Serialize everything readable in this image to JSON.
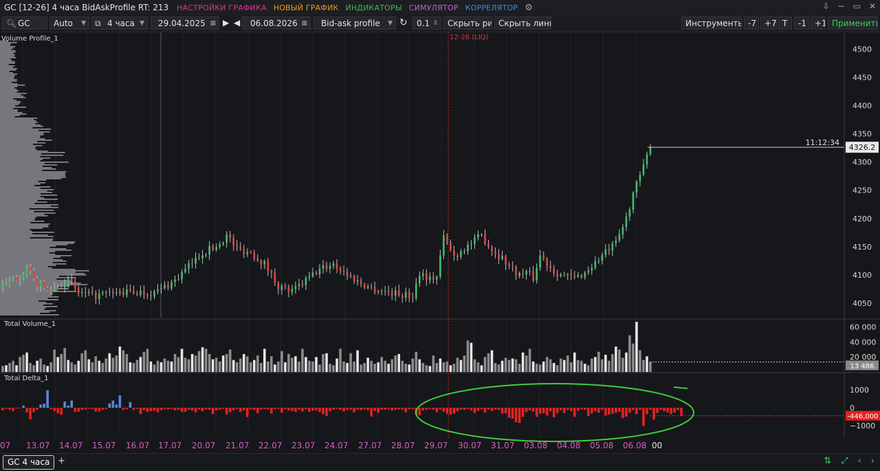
{
  "window": {
    "title": "GC [12-26] 4 часа BidAskProfile RT: 213",
    "menus": [
      {
        "label": "НАСТРОЙКИ ГРАФИКА",
        "color": "#e0338a"
      },
      {
        "label": "НОВЫЙ ГРАФИК",
        "color": "#e89b21"
      },
      {
        "label": "ИНДИКАТОРЫ",
        "color": "#3fb950"
      },
      {
        "label": "СИМУЛЯТОР",
        "color": "#c061cb"
      },
      {
        "label": "КОРРЕЛЯТОР",
        "color": "#3a8dde"
      }
    ],
    "controls": [
      "⇩",
      "−",
      "▭",
      "✕"
    ]
  },
  "toolbar": {
    "symbol": "GC",
    "scale": "Auto",
    "timeframe": "4 часа",
    "date_from": "29.04.2025",
    "date_to": "06.08.2026",
    "chart_type": "Bid-ask profile",
    "step": "0.1",
    "hide_drawings": "Скрыть рис.",
    "hide_lines": "Скрыть линии",
    "instruments": "Инструменты",
    "btn_m7": "-7",
    "btn_p7": "+7",
    "btn_t": "T",
    "btn_m1": "-1",
    "btn_p1": "+1",
    "apply": "Применить"
  },
  "panels": {
    "price_label": "Volume Profile_1",
    "volume_label": "Total Volume_1",
    "delta_label": "Total Delta_1",
    "contract_marker": "12-26 (LIQ)",
    "current_time": "11:12:34",
    "current_price": "4326.2",
    "current_volume": "13 486",
    "current_delta": "-446,000",
    "price_ticks": [
      "4500",
      "4450",
      "4400",
      "4350",
      "4300",
      "4250",
      "4200",
      "4150",
      "4100",
      "4050"
    ],
    "volume_ticks": [
      "60 000",
      "40 000",
      "20 000"
    ],
    "delta_ticks": [
      "1000",
      "0",
      "−1000"
    ]
  },
  "chart_data": {
    "type": "candlestick",
    "price_axis": {
      "ticks": [
        4500,
        4450,
        4400,
        4350,
        4300,
        4250,
        4200,
        4150,
        4100,
        4050
      ],
      "range": [
        4028,
        4520
      ]
    },
    "volume_axis": {
      "ticks": [
        60000,
        40000,
        20000
      ],
      "range": [
        0,
        68000
      ]
    },
    "delta_axis": {
      "ticks": [
        1000,
        0,
        -1000
      ],
      "range": [
        -1550,
        1700
      ]
    },
    "x_labels": [
      "07",
      "13.07",
      "14.07",
      "15.07",
      "16.07",
      "17.07",
      "20.07",
      "21.07",
      "22.07",
      "23.07",
      "24.07",
      "27.07",
      "28.07",
      "29.07",
      "30.07",
      "31.07",
      "03.08",
      "04.08",
      "05.08",
      "06.08",
      "00"
    ],
    "last_price": 4326.2,
    "last_volume": 13486,
    "last_delta": -446,
    "price_path": [
      [
        0,
        4078
      ],
      [
        5,
        4100
      ],
      [
        7,
        4112
      ],
      [
        9,
        4090
      ],
      [
        13,
        4072
      ],
      [
        19,
        4090
      ],
      [
        22,
        4068
      ],
      [
        26,
        4062
      ],
      [
        30,
        4066
      ],
      [
        34,
        4068
      ],
      [
        38,
        4070
      ],
      [
        44,
        4068
      ],
      [
        50,
        4090
      ],
      [
        54,
        4115
      ],
      [
        58,
        4140
      ],
      [
        62,
        4150
      ],
      [
        65,
        4170
      ],
      [
        68,
        4146
      ],
      [
        72,
        4140
      ],
      [
        76,
        4120
      ],
      [
        80,
        4080
      ],
      [
        84,
        4070
      ],
      [
        88,
        4090
      ],
      [
        92,
        4110
      ],
      [
        96,
        4120
      ],
      [
        100,
        4100
      ],
      [
        104,
        4085
      ],
      [
        108,
        4075
      ],
      [
        112,
        4070
      ],
      [
        116,
        4065
      ],
      [
        119,
        4063
      ],
      [
        121,
        4105
      ],
      [
        124,
        4093
      ],
      [
        126,
        4098
      ],
      [
        128,
        4167
      ],
      [
        131,
        4133
      ],
      [
        134,
        4148
      ],
      [
        137,
        4160
      ],
      [
        139,
        4170
      ],
      [
        142,
        4145
      ],
      [
        145,
        4130
      ],
      [
        148,
        4110
      ],
      [
        150,
        4100
      ],
      [
        152,
        4105
      ],
      [
        154,
        4095
      ],
      [
        156,
        4135
      ],
      [
        158,
        4120
      ],
      [
        160,
        4108
      ],
      [
        163,
        4098
      ],
      [
        166,
        4094
      ],
      [
        169,
        4104
      ],
      [
        172,
        4122
      ],
      [
        175,
        4140
      ],
      [
        178,
        4155
      ],
      [
        181,
        4200
      ],
      [
        183,
        4245
      ],
      [
        186,
        4290
      ],
      [
        188,
        4330
      ],
      [
        190,
        4350
      ],
      [
        192,
        4326
      ]
    ],
    "volume": [
      8000,
      9000,
      12000,
      15000,
      9000,
      20000,
      23000,
      26000,
      12000,
      9000,
      15000,
      18000,
      10000,
      8000,
      13000,
      30000,
      20000,
      24000,
      32000,
      16000,
      13000,
      10000,
      15000,
      25000,
      29000,
      17000,
      13000,
      21000,
      15000,
      12000,
      18000,
      25000,
      19000,
      22000,
      34000,
      29000,
      24000,
      13000,
      12000,
      16000,
      20000,
      27000,
      31000,
      14000,
      10000,
      15000,
      13000,
      18000,
      15000,
      14000,
      24000,
      20000,
      31000,
      19000,
      17000,
      24000,
      22000,
      28000,
      33000,
      31000,
      24000,
      17000,
      19000,
      14000,
      22000,
      24000,
      30000,
      16000,
      13000,
      18000,
      24000,
      21000,
      13000,
      16000,
      22000,
      12000,
      31000,
      14000,
      21000,
      10000,
      14000,
      28000,
      13000,
      24000,
      19000,
      21000,
      14000,
      31000,
      20000,
      15000,
      14000,
      20000,
      10000,
      24000,
      25000,
      11000,
      9000,
      18000,
      31000,
      14000,
      12000,
      25000,
      14000,
      29000,
      10000,
      12000,
      19000,
      15000,
      11000,
      13000,
      20000,
      15000,
      11000,
      17000,
      22000,
      24000,
      15000,
      11000,
      10000,
      18000,
      27000,
      17000,
      12000,
      9000,
      8000,
      22000,
      12000,
      18000,
      13000,
      14000,
      9000,
      11000,
      19000,
      16000,
      22000,
      42000,
      39000,
      17000,
      13000,
      9000,
      20000,
      25000,
      29000,
      12000,
      10000,
      15000,
      19000,
      16000,
      18000,
      17000,
      11000,
      26000,
      22000,
      31000,
      14000,
      11000,
      10000,
      14000,
      20000,
      17000,
      12000,
      9000,
      18000,
      16000,
      22000,
      13000,
      26000,
      16000,
      15000,
      11000,
      9000,
      18000,
      20000,
      27000,
      17000,
      23000,
      15000,
      24000,
      34000,
      30000,
      19000,
      26000,
      49000,
      38000,
      67000,
      29000,
      16000,
      21000,
      13486
    ],
    "delta": [
      -150,
      -60,
      -110,
      -180,
      -40,
      -40,
      120,
      -260,
      -650,
      -250,
      -120,
      180,
      230,
      980,
      -80,
      -190,
      -310,
      -400,
      350,
      120,
      400,
      -240,
      -220,
      -120,
      -90,
      -50,
      -80,
      -220,
      -210,
      -120,
      -70,
      240,
      400,
      180,
      690,
      -130,
      -80,
      320,
      -120,
      -60,
      -350,
      -140,
      -230,
      -190,
      -170,
      -260,
      -130,
      -80,
      -90,
      -70,
      -150,
      -110,
      -230,
      -220,
      -110,
      -160,
      -260,
      -110,
      -200,
      -90,
      -110,
      -350,
      -150,
      -110,
      -60,
      -380,
      -250,
      -140,
      -70,
      -230,
      -150,
      -520,
      -90,
      -120,
      -300,
      -110,
      -80,
      -100,
      -320,
      -80,
      -60,
      -280,
      -80,
      -160,
      -180,
      -230,
      -110,
      -210,
      -80,
      -230,
      -160,
      -150,
      -250,
      -360,
      -460,
      -200,
      -110,
      -60,
      -120,
      -200,
      -130,
      -110,
      -250,
      -120,
      -140,
      -90,
      -130,
      -490,
      -180,
      -280,
      -120,
      -110,
      -90,
      -160,
      -120,
      -90,
      -110,
      -250,
      -90,
      -80,
      -400,
      -420,
      -150,
      -110,
      -70,
      -110,
      -250,
      -110,
      -220,
      -340,
      -390,
      -320,
      -200,
      -110,
      -120,
      -70,
      -150,
      -290,
      -170,
      -90,
      -270,
      -110,
      -190,
      -100,
      -120,
      -330,
      -320,
      -560,
      -610,
      -810,
      -850,
      -510,
      -240,
      -150,
      -220,
      -510,
      -330,
      -310,
      -430,
      -200,
      -540,
      -290,
      -140,
      -290,
      -120,
      -190,
      -510,
      -170,
      -90,
      -120,
      -460,
      -320,
      -210,
      -280,
      -120,
      -440,
      -380,
      -330,
      -280,
      -220,
      -580,
      -500,
      -280,
      -120,
      -350,
      -120,
      -1020,
      -360,
      -110,
      -660,
      -290,
      -120,
      -200,
      -270,
      -360,
      -270,
      -140,
      -446
    ]
  },
  "annotation": {
    "type": "ellipse",
    "color": "#3ccf3c"
  },
  "bottom": {
    "tab": "GC 4 часа",
    "add": "+",
    "icons": [
      "⇅",
      "⤢",
      "‹",
      "›"
    ]
  }
}
